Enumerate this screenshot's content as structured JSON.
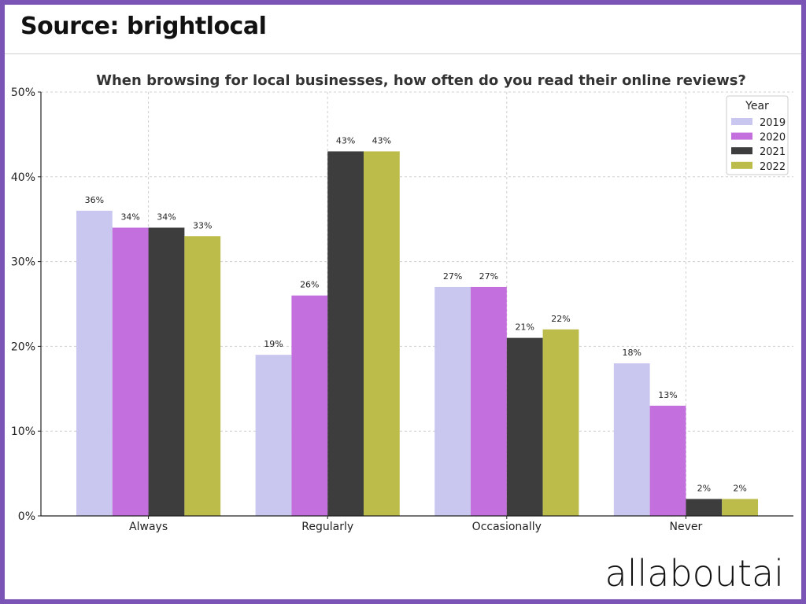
{
  "header": {
    "source": "Source: brightlocal"
  },
  "footer": {
    "brand": "allaboutai"
  },
  "chart_data": {
    "type": "bar",
    "title": "When browsing for local businesses, how often do you read their online reviews?",
    "categories": [
      "Always",
      "Regularly",
      "Occasionally",
      "Never"
    ],
    "series": [
      {
        "name": "2019",
        "values": [
          36,
          19,
          27,
          18
        ],
        "color": "#c9c6ef"
      },
      {
        "name": "2020",
        "values": [
          34,
          26,
          27,
          13
        ],
        "color": "#c36fdd"
      },
      {
        "name": "2021",
        "values": [
          34,
          43,
          21,
          2
        ],
        "color": "#3d3d3d"
      },
      {
        "name": "2022",
        "values": [
          33,
          43,
          22,
          2
        ],
        "color": "#bcbc4b"
      }
    ],
    "ylim": [
      0,
      50
    ],
    "yticks": [
      "0%",
      "10%",
      "20%",
      "30%",
      "40%",
      "50%"
    ],
    "value_suffix": "%",
    "legend": {
      "title": "Year",
      "placement": "top-right"
    },
    "grid": true,
    "xlabel": "",
    "ylabel": ""
  }
}
